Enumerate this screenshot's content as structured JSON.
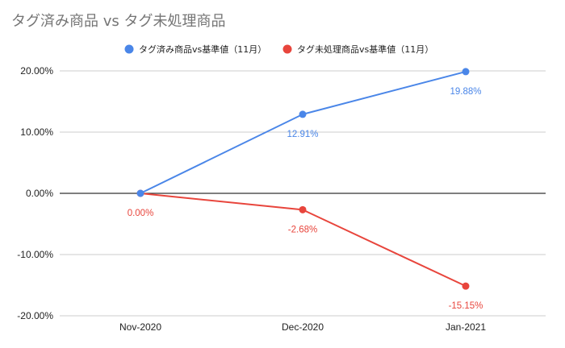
{
  "chart_data": {
    "type": "line",
    "title": "タグ済み商品 vs タグ未処理商品",
    "xlabel": "",
    "ylabel": "",
    "categories": [
      "Nov-2020",
      "Dec-2020",
      "Jan-2021"
    ],
    "ylim": [
      -0.2,
      0.2
    ],
    "yticks": [
      0.2,
      0.1,
      0.0,
      -0.1,
      -0.2
    ],
    "ytick_labels": [
      "20.00%",
      "10.00%",
      "0.00%",
      "-10.00%",
      "-20.00%"
    ],
    "grid": true,
    "legend_position": "top",
    "series": [
      {
        "name": "タグ済み商品vs基準値（11月）",
        "color": "#4a86e8",
        "values": [
          0.0,
          0.1291,
          0.1988
        ],
        "labels": [
          "",
          "12.91%",
          "19.88%"
        ]
      },
      {
        "name": "タグ未処理商品vs基準値（11月）",
        "color": "#e8453c",
        "values": [
          0.0,
          -0.0268,
          -0.1515
        ],
        "labels": [
          "0.00%",
          "-2.68%",
          "-15.15%"
        ]
      }
    ]
  }
}
